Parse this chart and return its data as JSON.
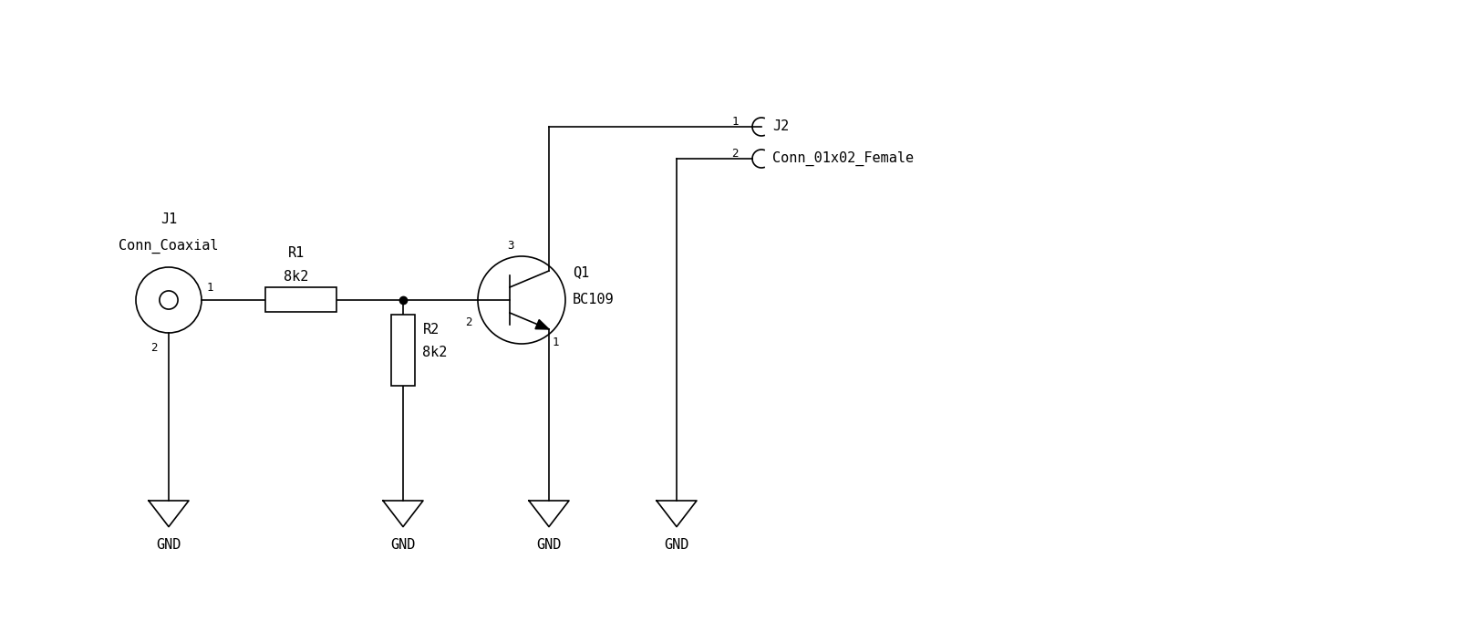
{
  "bg_color": "#ffffff",
  "line_color": "#000000",
  "font_color": "#000000",
  "font_family": "monospace",
  "font_size": 11,
  "small_font_size": 9,
  "lw": 1.2,
  "figsize": [
    16,
    7.04
  ],
  "dpi": 100,
  "xlim": [
    0,
    16
  ],
  "ylim": [
    0,
    7.04
  ]
}
